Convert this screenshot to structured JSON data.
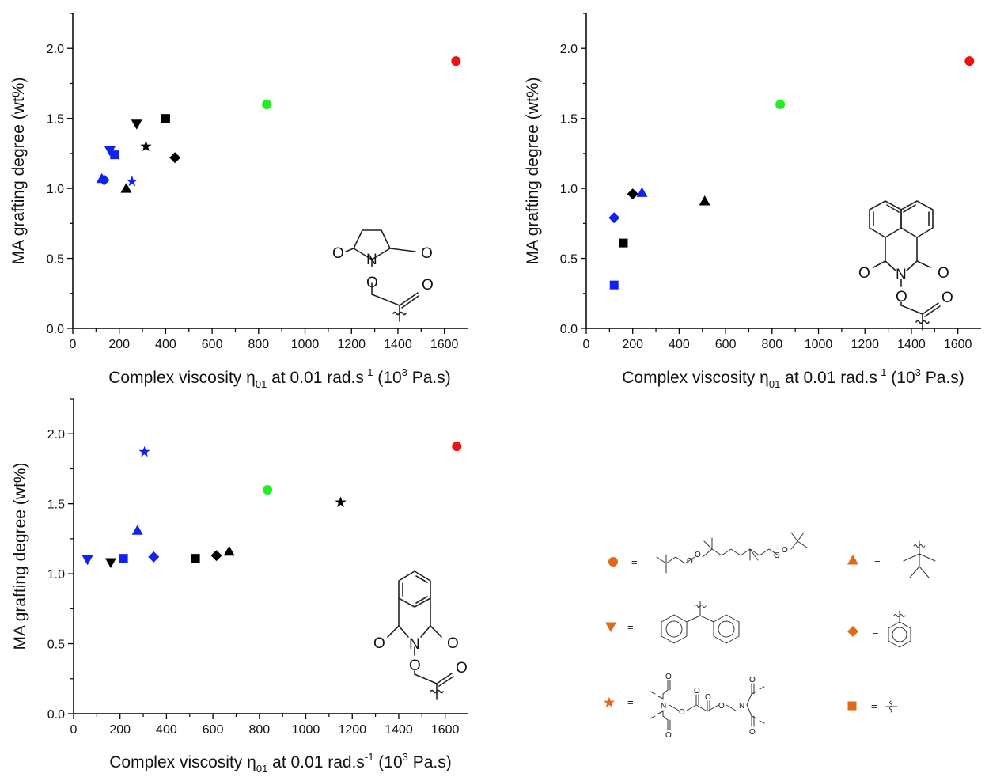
{
  "colors": {
    "red": "#ee1111",
    "green": "#22ee22",
    "blue": "#1122ee",
    "black": "#000000",
    "orange": "#e06a1a"
  },
  "chart_data": [
    {
      "type": "scatter",
      "title": "",
      "xlabel": "Complex viscosity η01 at 0.01 rad.s-1 (10³ Pa.s)",
      "xlabel_parts": {
        "pre": "Complex viscosity ",
        "eta": "η",
        "sub": "01",
        "mid": " at 0.01 rad.s",
        "sup1": "-1",
        "post1": " (10",
        "sup2": "3",
        "post2": " Pa.s)"
      },
      "ylabel": "MA grafting degree (wt%)",
      "xlim": [
        0,
        1700
      ],
      "ylim": [
        0,
        2.25
      ],
      "xticks": [
        "0",
        "200",
        "400",
        "600",
        "800",
        "1000",
        "1200",
        "1400",
        "1600"
      ],
      "yticks": [
        "0.0",
        "0.5",
        "1.0",
        "1.5",
        "2.0"
      ],
      "inset": "succinimide",
      "points": [
        {
          "x": 1650,
          "y": 1.91,
          "marker": "circle",
          "color": "#ee1111"
        },
        {
          "x": 835,
          "y": 1.6,
          "marker": "circle",
          "color": "#22ee22"
        },
        {
          "x": 400,
          "y": 1.5,
          "marker": "square",
          "color": "#000000"
        },
        {
          "x": 275,
          "y": 1.46,
          "marker": "tri-down",
          "color": "#000000"
        },
        {
          "x": 315,
          "y": 1.3,
          "marker": "star",
          "color": "#000000"
        },
        {
          "x": 440,
          "y": 1.22,
          "marker": "diamond",
          "color": "#000000"
        },
        {
          "x": 230,
          "y": 1.0,
          "marker": "tri-up",
          "color": "#000000"
        },
        {
          "x": 160,
          "y": 1.27,
          "marker": "tri-down",
          "color": "#1122ee"
        },
        {
          "x": 180,
          "y": 1.24,
          "marker": "square",
          "color": "#1122ee"
        },
        {
          "x": 125,
          "y": 1.07,
          "marker": "tri-up",
          "color": "#1122ee"
        },
        {
          "x": 135,
          "y": 1.06,
          "marker": "diamond",
          "color": "#1122ee"
        },
        {
          "x": 255,
          "y": 1.05,
          "marker": "star",
          "color": "#1122ee"
        }
      ]
    },
    {
      "type": "scatter",
      "title": "",
      "xlabel": "Complex viscosity η01 at 0.01 rad.s-1 (10³ Pa.s)",
      "xlabel_parts": {
        "pre": "Complex viscosity ",
        "eta": "η",
        "sub": "01",
        "mid": " at 0.01 rad.s",
        "sup1": "-1",
        "post1": " (10",
        "sup2": "3",
        "post2": " Pa.s)"
      },
      "ylabel": "MA grafting degree (wt%)",
      "xlim": [
        0,
        1700
      ],
      "ylim": [
        0,
        2.25
      ],
      "xticks": [
        "0",
        "200",
        "400",
        "600",
        "800",
        "1000",
        "1200",
        "1400",
        "1600"
      ],
      "yticks": [
        "0.0",
        "0.5",
        "1.0",
        "1.5",
        "2.0"
      ],
      "inset": "naphthalimide",
      "points": [
        {
          "x": 1650,
          "y": 1.91,
          "marker": "circle",
          "color": "#ee1111"
        },
        {
          "x": 835,
          "y": 1.6,
          "marker": "circle",
          "color": "#22ee22"
        },
        {
          "x": 200,
          "y": 0.96,
          "marker": "diamond",
          "color": "#000000"
        },
        {
          "x": 510,
          "y": 0.91,
          "marker": "tri-up",
          "color": "#000000"
        },
        {
          "x": 160,
          "y": 0.61,
          "marker": "square",
          "color": "#000000"
        },
        {
          "x": 240,
          "y": 0.97,
          "marker": "tri-up",
          "color": "#1122ee"
        },
        {
          "x": 120,
          "y": 0.79,
          "marker": "diamond",
          "color": "#1122ee"
        },
        {
          "x": 120,
          "y": 0.31,
          "marker": "square",
          "color": "#1122ee"
        }
      ]
    },
    {
      "type": "scatter",
      "title": "",
      "xlabel": "Complex viscosity η01 at 0.01 rad.s-1 (10³ Pa.s)",
      "xlabel_parts": {
        "pre": "Complex viscosity ",
        "eta": "η",
        "sub": "01",
        "mid": " at 0.01 rad.s",
        "sup1": "-1",
        "post1": " (10",
        "sup2": "3",
        "post2": " Pa.s)"
      },
      "ylabel": "MA grafting degree (wt%)",
      "xlim": [
        0,
        1700
      ],
      "ylim": [
        0,
        2.25
      ],
      "xticks": [
        "0",
        "200",
        "400",
        "600",
        "800",
        "1000",
        "1200",
        "1400",
        "1600"
      ],
      "yticks": [
        "0.0",
        "0.5",
        "1.0",
        "1.5",
        "2.0"
      ],
      "inset": "phthalimide",
      "points": [
        {
          "x": 1650,
          "y": 1.91,
          "marker": "circle",
          "color": "#ee1111"
        },
        {
          "x": 835,
          "y": 1.6,
          "marker": "circle",
          "color": "#22ee22"
        },
        {
          "x": 1150,
          "y": 1.51,
          "marker": "star",
          "color": "#000000"
        },
        {
          "x": 670,
          "y": 1.16,
          "marker": "tri-up",
          "color": "#000000"
        },
        {
          "x": 615,
          "y": 1.13,
          "marker": "diamond",
          "color": "#000000"
        },
        {
          "x": 525,
          "y": 1.11,
          "marker": "square",
          "color": "#000000"
        },
        {
          "x": 160,
          "y": 1.08,
          "marker": "tri-down",
          "color": "#000000"
        },
        {
          "x": 305,
          "y": 1.87,
          "marker": "star",
          "color": "#1122ee"
        },
        {
          "x": 275,
          "y": 1.31,
          "marker": "tri-up",
          "color": "#1122ee"
        },
        {
          "x": 60,
          "y": 1.1,
          "marker": "tri-down",
          "color": "#1122ee"
        },
        {
          "x": 215,
          "y": 1.11,
          "marker": "square",
          "color": "#1122ee"
        },
        {
          "x": 345,
          "y": 1.12,
          "marker": "diamond",
          "color": "#1122ee"
        }
      ]
    }
  ],
  "legend": {
    "equals": "=",
    "items": [
      {
        "marker": "circle",
        "structure": "dialkyl-peroxide"
      },
      {
        "marker": "tri-up",
        "structure": "tert-butyl"
      },
      {
        "marker": "tri-down",
        "structure": "diphenylmethyl"
      },
      {
        "marker": "diamond",
        "structure": "phenyl"
      },
      {
        "marker": "star",
        "structure": "oxalate-bis-imide"
      },
      {
        "marker": "square",
        "structure": "methyl"
      }
    ]
  },
  "chem_labels": {
    "O": "O",
    "N": "N"
  }
}
